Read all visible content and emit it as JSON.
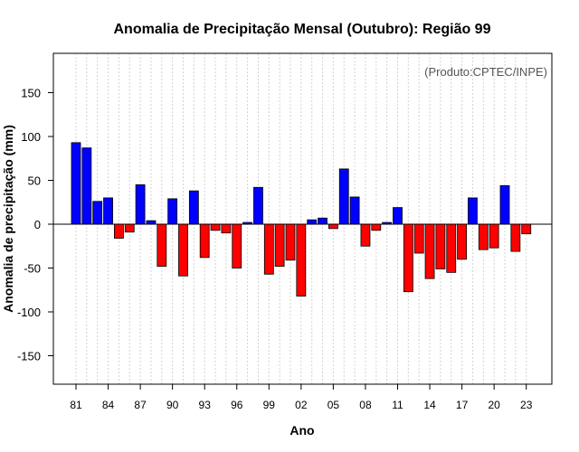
{
  "chart_data": {
    "type": "bar",
    "title": "Anomalia de Precipitação Mensal (Outubro): Região 99",
    "xlabel": "Ano",
    "ylabel": "Anomalia de precipitação (mm)",
    "credit": "(Produto:CPTEC/INPE)",
    "ylim": [
      -182,
      190
    ],
    "yticks": [
      -150,
      -100,
      -50,
      0,
      50,
      100,
      150
    ],
    "xtick_labels": [
      "81",
      "84",
      "87",
      "90",
      "93",
      "96",
      "99",
      "02",
      "05",
      "08",
      "11",
      "14",
      "17",
      "20",
      "23"
    ],
    "categories": [
      "1981",
      "1982",
      "1983",
      "1984",
      "1985",
      "1986",
      "1987",
      "1988",
      "1989",
      "1990",
      "1991",
      "1992",
      "1993",
      "1994",
      "1995",
      "1996",
      "1997",
      "1998",
      "1999",
      "2000",
      "2001",
      "2002",
      "2003",
      "2004",
      "2005",
      "2006",
      "2007",
      "2008",
      "2009",
      "2010",
      "2011",
      "2012",
      "2013",
      "2014",
      "2015",
      "2016",
      "2017",
      "2018",
      "2019",
      "2020",
      "2021",
      "2022",
      "2023"
    ],
    "values": [
      93,
      87,
      26,
      30,
      -16,
      -9,
      45,
      4,
      -48,
      29,
      -59,
      38,
      -38,
      -7,
      -10,
      -50,
      2,
      42,
      -57,
      -48,
      -41,
      -82,
      5,
      7,
      -5,
      63,
      31,
      -25,
      -7,
      2,
      19,
      -77,
      -33,
      -62,
      -51,
      -55,
      -40,
      30,
      -29,
      -27,
      44,
      -31,
      -11
    ],
    "colors": {
      "positive": "#0000ff",
      "negative": "#ff0000",
      "grid": "#d3d3d3",
      "axis": "#000000"
    }
  }
}
